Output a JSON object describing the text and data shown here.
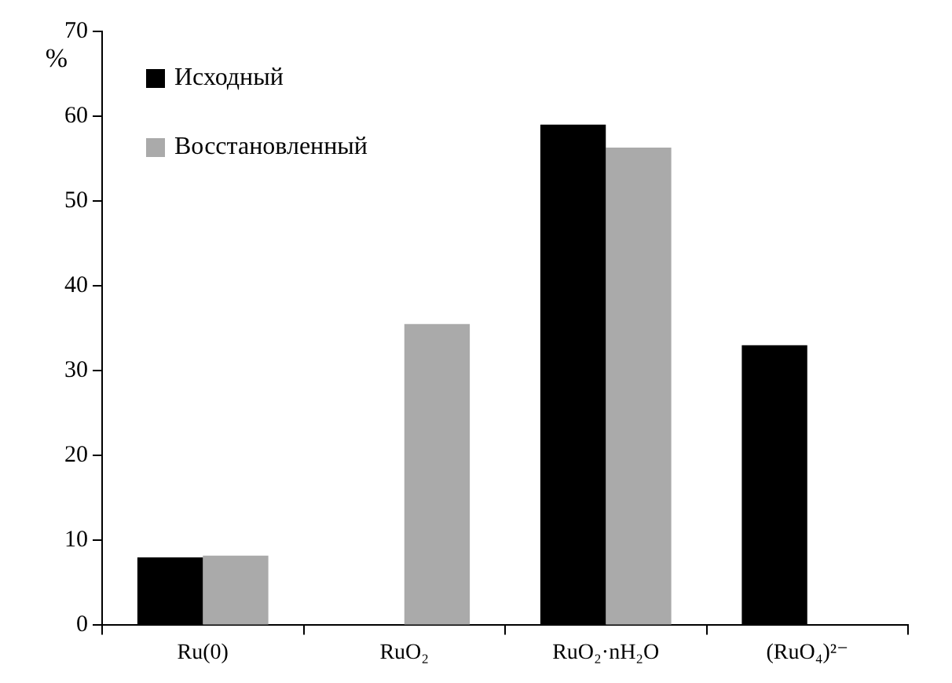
{
  "chart_data": {
    "type": "bar",
    "ylabel": "%",
    "categories": [
      "Ru(0)",
      "RuO₂",
      "RuO₂·nH₂O",
      "(RuO₄)²⁻"
    ],
    "series": [
      {
        "name": "Исходный",
        "color": "#000000",
        "values": [
          8,
          null,
          59,
          33
        ]
      },
      {
        "name": "Восстановленный",
        "color": "#aaaaaa",
        "values": [
          8.2,
          35.5,
          56.3,
          null
        ]
      }
    ],
    "ylim": [
      0,
      70
    ],
    "yticks": [
      0,
      10,
      20,
      30,
      40,
      50,
      60,
      70
    ],
    "grid": false,
    "legend": "top left"
  }
}
